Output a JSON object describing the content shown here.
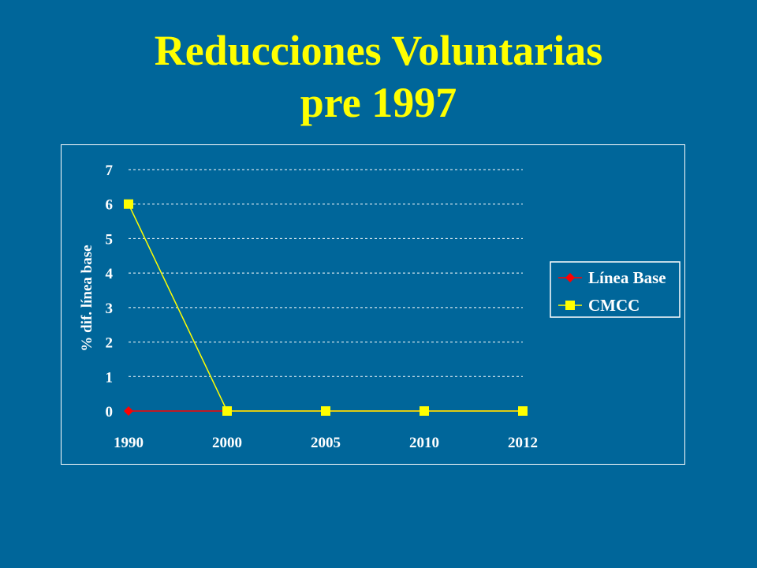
{
  "slide": {
    "title_line1": "Reducciones Voluntarias",
    "title_line2": "pre 1997"
  },
  "colors": {
    "background": "#00669a",
    "title": "#ffff00",
    "linea_base": "#ff0000",
    "cmcc": "#ffff00",
    "grid": "#ffffff"
  },
  "chart_data": {
    "type": "line",
    "categories": [
      "1990",
      "2000",
      "2005",
      "2010",
      "2012"
    ],
    "series": [
      {
        "name": "Línea Base",
        "values": [
          0,
          0,
          0,
          0,
          0
        ],
        "marker": "diamond"
      },
      {
        "name": "CMCC",
        "values": [
          6,
          0,
          0,
          0,
          0
        ],
        "marker": "square"
      }
    ],
    "ylabel": "% dif. línea base",
    "ylim": [
      0,
      7
    ],
    "yticks": [
      0,
      1,
      2,
      3,
      4,
      5,
      6,
      7
    ],
    "grid": "horizontal-dashed",
    "legend": "right"
  }
}
